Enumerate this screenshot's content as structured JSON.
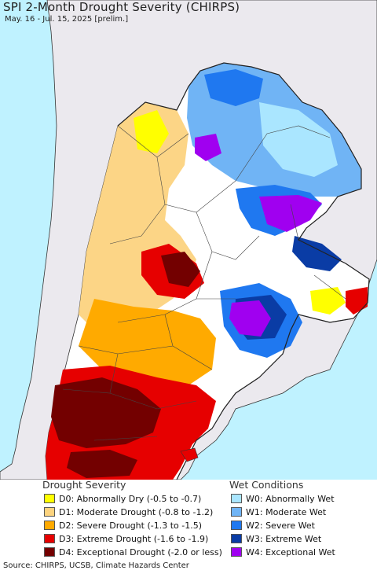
{
  "map": {
    "title": "SPI 2-Month Drought Severity (CHIRPS)",
    "subtitle": "May. 16 - Jul. 15, 2025 [prelim.]",
    "colors": {
      "ocean": "#bff2ff",
      "land_outside": "#ebe9ee",
      "border": "#333333"
    }
  },
  "legend": {
    "drought": {
      "heading": "Drought Severity",
      "items": [
        {
          "label": "D0: Abnormally Dry (-0.5 to -0.7)",
          "color": "#ffff00"
        },
        {
          "label": "D1: Moderate Drought (-0.8 to -1.2)",
          "color": "#fcd37f"
        },
        {
          "label": "D2: Severe Drought (-1.3 to -1.5)",
          "color": "#ffaa00"
        },
        {
          "label": "D3: Extreme Drought (-1.6 to -1.9)",
          "color": "#e60000"
        },
        {
          "label": "D4: Exceptional Drought (-2.0 or less)",
          "color": "#730000"
        }
      ]
    },
    "wet": {
      "heading": "Wet Conditions",
      "items": [
        {
          "label": "W0: Abnormally Wet",
          "color": "#aae6ff"
        },
        {
          "label": "W1: Moderate Wet",
          "color": "#70b4f5"
        },
        {
          "label": "W2: Severe Wet",
          "color": "#1f78f0"
        },
        {
          "label": "W3: Extreme Wet",
          "color": "#0a3ca5"
        },
        {
          "label": "W4: Exceptional Wet",
          "color": "#a000f0"
        }
      ]
    }
  },
  "footer": {
    "source": "Source: CHIRPS, UCSB, Climate Hazards Center"
  }
}
